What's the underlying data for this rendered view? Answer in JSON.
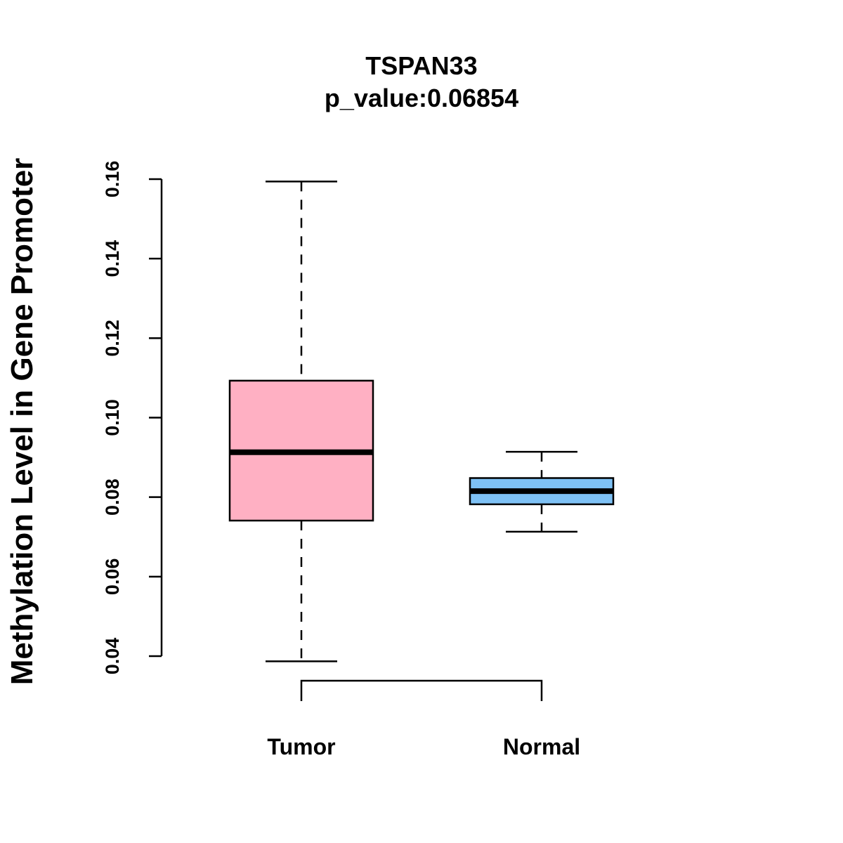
{
  "chart_data": {
    "type": "boxplot",
    "title": "TSPAN33",
    "subtitle": "p_value:0.06854",
    "xlabel": "",
    "ylabel": "Methylation Level in Gene Promoter",
    "ylim": [
      0.04,
      0.16
    ],
    "yticks": [
      0.04,
      0.06,
      0.08,
      0.1,
      0.12,
      0.14,
      0.16
    ],
    "ytick_labels": [
      "0.04",
      "0.06",
      "0.08",
      "0.10",
      "0.12",
      "0.14",
      "0.16"
    ],
    "categories": [
      "Tumor",
      "Normal"
    ],
    "boxes": [
      {
        "name": "Tumor",
        "min": 0.0387,
        "q1": 0.0741,
        "median": 0.0913,
        "q3": 0.1093,
        "max": 0.1594,
        "color": "#FFB0C3"
      },
      {
        "name": "Normal",
        "min": 0.0713,
        "q1": 0.0782,
        "median": 0.0815,
        "q3": 0.0848,
        "max": 0.0914,
        "color": "#7EC1F5"
      }
    ],
    "bracket": {
      "from": "Tumor",
      "to": "Normal"
    },
    "grid": false
  }
}
